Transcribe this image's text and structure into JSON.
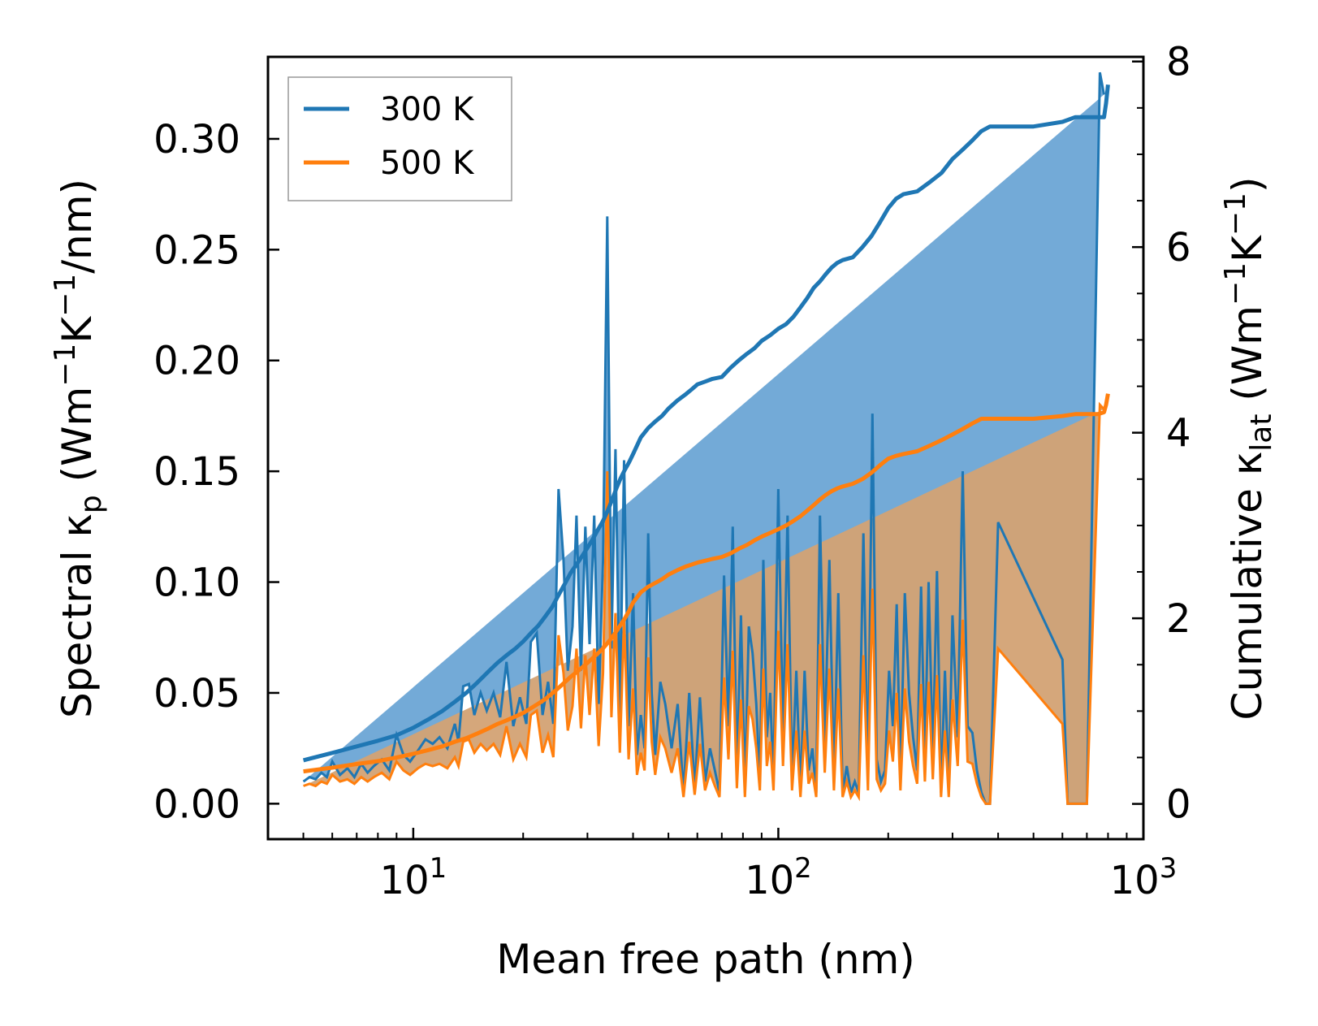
{
  "chart_data": {
    "type": "line",
    "title": "",
    "xlabel": "Mean free path (nm)",
    "xscale": "log",
    "xlim": [
      4.0,
      1000
    ],
    "x_tick_labels": [
      {
        "base": "10",
        "exp": "1",
        "value": 10
      },
      {
        "base": "10",
        "exp": "2",
        "value": 100
      },
      {
        "base": "10",
        "exp": "3",
        "value": 1000
      }
    ],
    "ylabel_left": {
      "prefix": "Spectral κ",
      "sub": "p",
      "suffix": " (Wm",
      "sup1": "−1",
      "mid": "K",
      "sup2": "−1",
      "end": "/nm)"
    },
    "ylim_left": [
      -0.016,
      0.337
    ],
    "y_ticks_left": [
      "0.00",
      "0.05",
      "0.10",
      "0.15",
      "0.20",
      "0.25",
      "0.30"
    ],
    "ylabel_right": {
      "prefix": "Cumulative κ",
      "sub": "lat",
      "suffix": " (Wm",
      "sup1": "−1",
      "mid": "K",
      "sup2": "−1",
      "end": ")"
    },
    "ylim_right": [
      -0.38,
      8.05
    ],
    "y_ticks_right": [
      "0",
      "2",
      "4",
      "6",
      "8"
    ],
    "legend": {
      "position": "upper-left",
      "entries": [
        "300 K",
        "500 K"
      ]
    },
    "colors": {
      "s300": "#1f77b4",
      "s500": "#ff7f0e",
      "fill300": "#5b9bd0",
      "fill500": "#d3a274"
    },
    "spectral": {
      "x": [
        5,
        5.2,
        5.4,
        5.6,
        5.8,
        6.0,
        6.3,
        6.6,
        6.9,
        7.2,
        7.5,
        7.8,
        8.2,
        8.6,
        9.0,
        9.4,
        9.8,
        10.3,
        10.8,
        11.3,
        11.8,
        12.4,
        13.0,
        13.3,
        13.7,
        14.2,
        14.7,
        15.3,
        15.9,
        16.6,
        17.3,
        18.0,
        18.8,
        19.6,
        20.4,
        21.0,
        21.8,
        22.6,
        23.4,
        24.2,
        25.0,
        25.8,
        26.5,
        27.3,
        28.0,
        28.8,
        29.6,
        30.4,
        31.3,
        32.2,
        33.1,
        34.0,
        34.9,
        35.8,
        36.8,
        37.8,
        38.9,
        40.0,
        41.0,
        42.0,
        43.0,
        44.0,
        45.0,
        46.0,
        47.5,
        49.0,
        51.0,
        53.0,
        55.0,
        57.0,
        59.0,
        61.0,
        63.0,
        65.0,
        67.0,
        69.0,
        71.0,
        73.0,
        75.0,
        77.0,
        79.0,
        81.0,
        83.0,
        85.0,
        87.0,
        89.0,
        91.0,
        93.0,
        95.0,
        97.0,
        100,
        103,
        106,
        109,
        112,
        115,
        118,
        121,
        124,
        127,
        130,
        134,
        138,
        142,
        146,
        150,
        154,
        158,
        162,
        166,
        171,
        176,
        181,
        186,
        191,
        196,
        201,
        206,
        211,
        216,
        222,
        228,
        234,
        240,
        246,
        252,
        258,
        265,
        272,
        279,
        286,
        293,
        300,
        310,
        320,
        330,
        340,
        350,
        360,
        370,
        380,
        400,
        600,
        620,
        640,
        660,
        680,
        700,
        760,
        780,
        790,
        800
      ],
      "y300": [
        0.01,
        0.012,
        0.011,
        0.014,
        0.012,
        0.019,
        0.013,
        0.016,
        0.012,
        0.018,
        0.014,
        0.017,
        0.02,
        0.015,
        0.031,
        0.022,
        0.019,
        0.024,
        0.029,
        0.027,
        0.03,
        0.025,
        0.036,
        0.028,
        0.053,
        0.054,
        0.04,
        0.05,
        0.042,
        0.05,
        0.039,
        0.064,
        0.035,
        0.048,
        0.036,
        0.073,
        0.077,
        0.04,
        0.055,
        0.036,
        0.142,
        0.11,
        0.06,
        0.08,
        0.13,
        0.06,
        0.125,
        0.072,
        0.13,
        0.045,
        0.11,
        0.265,
        0.07,
        0.16,
        0.04,
        0.155,
        0.035,
        0.095,
        0.022,
        0.04,
        0.025,
        0.122,
        0.05,
        0.022,
        0.055,
        0.045,
        0.025,
        0.045,
        0.005,
        0.05,
        0.007,
        0.048,
        0.01,
        0.025,
        0.015,
        0.005,
        0.103,
        0.035,
        0.125,
        0.012,
        0.085,
        0.005,
        0.08,
        0.068,
        0.045,
        0.01,
        0.11,
        0.03,
        0.05,
        0.01,
        0.142,
        0.03,
        0.13,
        0.01,
        0.06,
        0.005,
        0.06,
        0.015,
        0.025,
        0.005,
        0.13,
        0.025,
        0.11,
        0.01,
        0.095,
        0.005,
        0.017,
        0.005,
        0.01,
        0.005,
        0.122,
        0.01,
        0.176,
        0.02,
        0.01,
        0.015,
        0.06,
        0.035,
        0.09,
        0.01,
        0.095,
        0.05,
        0.03,
        0.015,
        0.098,
        0.018,
        0.1,
        0.02,
        0.105,
        0.005,
        0.06,
        0.005,
        0.085,
        0.03,
        0.15,
        0.035,
        0.032,
        0.015,
        0.005,
        0.0,
        0.0,
        0.127,
        0.065,
        0.0,
        0.0,
        0.0,
        0.0,
        0.0,
        0.33,
        0.32
      ],
      "y500": [
        0.008,
        0.009,
        0.008,
        0.01,
        0.009,
        0.013,
        0.01,
        0.011,
        0.009,
        0.012,
        0.01,
        0.012,
        0.014,
        0.011,
        0.019,
        0.015,
        0.013,
        0.016,
        0.018,
        0.017,
        0.018,
        0.016,
        0.021,
        0.017,
        0.028,
        0.029,
        0.023,
        0.027,
        0.024,
        0.027,
        0.022,
        0.035,
        0.02,
        0.027,
        0.021,
        0.04,
        0.042,
        0.023,
        0.031,
        0.021,
        0.076,
        0.059,
        0.033,
        0.044,
        0.07,
        0.034,
        0.067,
        0.04,
        0.07,
        0.026,
        0.059,
        0.15,
        0.039,
        0.086,
        0.023,
        0.083,
        0.02,
        0.052,
        0.013,
        0.023,
        0.015,
        0.066,
        0.028,
        0.013,
        0.03,
        0.025,
        0.014,
        0.025,
        0.003,
        0.028,
        0.004,
        0.027,
        0.006,
        0.014,
        0.008,
        0.003,
        0.057,
        0.02,
        0.069,
        0.007,
        0.047,
        0.003,
        0.044,
        0.038,
        0.025,
        0.006,
        0.061,
        0.017,
        0.028,
        0.006,
        0.078,
        0.017,
        0.072,
        0.006,
        0.033,
        0.003,
        0.033,
        0.009,
        0.014,
        0.003,
        0.072,
        0.014,
        0.061,
        0.006,
        0.052,
        0.003,
        0.01,
        0.003,
        0.006,
        0.003,
        0.067,
        0.006,
        0.097,
        0.011,
        0.006,
        0.009,
        0.033,
        0.019,
        0.05,
        0.006,
        0.052,
        0.028,
        0.017,
        0.009,
        0.054,
        0.01,
        0.055,
        0.011,
        0.058,
        0.003,
        0.033,
        0.003,
        0.047,
        0.017,
        0.083,
        0.019,
        0.018,
        0.009,
        0.003,
        0.0,
        0.0,
        0.07,
        0.036,
        0.0,
        0.0,
        0.0,
        0.0,
        0.0,
        0.18,
        0.178
      ]
    },
    "cumulative": {
      "x": [
        5,
        6,
        7,
        8,
        9,
        10,
        11,
        12,
        13,
        14,
        15,
        16,
        17,
        18,
        19,
        20,
        21,
        22,
        23,
        24,
        25,
        26,
        27,
        28,
        29,
        30,
        31,
        32,
        33,
        34,
        35,
        36,
        37,
        38,
        39,
        40,
        42,
        44,
        46,
        48,
        50,
        53,
        56,
        58,
        60,
        63,
        66,
        70,
        74,
        78,
        82,
        86,
        90,
        95,
        100,
        105,
        110,
        115,
        120,
        125,
        130,
        135,
        140,
        145,
        150,
        160,
        170,
        180,
        190,
        200,
        210,
        220,
        240,
        260,
        280,
        300,
        320,
        340,
        360,
        380,
        400,
        500,
        600,
        650,
        700,
        750,
        780,
        790,
        800
      ],
      "y300": [
        0.47,
        0.55,
        0.62,
        0.68,
        0.74,
        0.82,
        0.91,
        1.0,
        1.1,
        1.2,
        1.31,
        1.42,
        1.52,
        1.6,
        1.67,
        1.75,
        1.84,
        1.92,
        2.02,
        2.12,
        2.25,
        2.37,
        2.49,
        2.58,
        2.67,
        2.76,
        2.85,
        2.95,
        3.04,
        3.15,
        3.27,
        3.4,
        3.51,
        3.6,
        3.68,
        3.77,
        3.95,
        4.05,
        4.12,
        4.18,
        4.26,
        4.35,
        4.42,
        4.47,
        4.52,
        4.55,
        4.58,
        4.6,
        4.7,
        4.78,
        4.85,
        4.91,
        4.99,
        5.05,
        5.12,
        5.17,
        5.25,
        5.35,
        5.45,
        5.56,
        5.63,
        5.71,
        5.78,
        5.83,
        5.86,
        5.89,
        6.0,
        6.12,
        6.27,
        6.42,
        6.52,
        6.57,
        6.6,
        6.7,
        6.8,
        6.95,
        7.05,
        7.15,
        7.25,
        7.3,
        7.3,
        7.3,
        7.35,
        7.4,
        7.4,
        7.4,
        7.4,
        7.55,
        7.75
      ],
      "y500": [
        0.35,
        0.39,
        0.43,
        0.46,
        0.5,
        0.54,
        0.58,
        0.62,
        0.67,
        0.71,
        0.76,
        0.81,
        0.86,
        0.9,
        0.94,
        0.98,
        1.03,
        1.08,
        1.13,
        1.19,
        1.25,
        1.31,
        1.37,
        1.42,
        1.47,
        1.52,
        1.57,
        1.62,
        1.67,
        1.73,
        1.79,
        1.86,
        1.93,
        2.0,
        2.08,
        2.17,
        2.28,
        2.34,
        2.38,
        2.42,
        2.47,
        2.52,
        2.56,
        2.58,
        2.6,
        2.62,
        2.64,
        2.66,
        2.7,
        2.75,
        2.79,
        2.84,
        2.88,
        2.92,
        2.96,
        3.0,
        3.05,
        3.1,
        3.16,
        3.22,
        3.28,
        3.33,
        3.37,
        3.4,
        3.42,
        3.45,
        3.5,
        3.57,
        3.65,
        3.72,
        3.75,
        3.77,
        3.8,
        3.86,
        3.92,
        3.98,
        4.04,
        4.1,
        4.15,
        4.15,
        4.15,
        4.15,
        4.18,
        4.2,
        4.2,
        4.2,
        4.22,
        4.3,
        4.42
      ]
    }
  }
}
